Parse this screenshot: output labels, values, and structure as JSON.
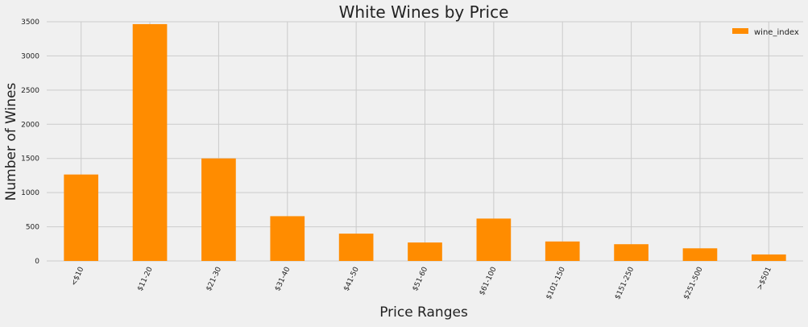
{
  "chart_data": {
    "type": "bar",
    "title": "White Wines by Price",
    "xlabel": "Price Ranges",
    "ylabel": "Number of Wines",
    "categories": [
      "<$10",
      "$11-20",
      "$21-30",
      "$31-40",
      "$41-50",
      "$51-60",
      "$61-100",
      "$101-150",
      "$151-250",
      "$251-500",
      ">$501"
    ],
    "series": [
      {
        "name": "wine_index",
        "color": "#ff8c00",
        "values": [
          1265,
          3465,
          1500,
          655,
          400,
          270,
          620,
          285,
          245,
          185,
          95
        ]
      }
    ],
    "yticks": [
      0,
      500,
      1000,
      1500,
      2000,
      2500,
      3000,
      3500
    ],
    "ylim": [
      0,
      3500
    ],
    "grid": true,
    "legend": "top-right",
    "background": "#f0f0f0",
    "grid_color": "#cbcbcb"
  }
}
